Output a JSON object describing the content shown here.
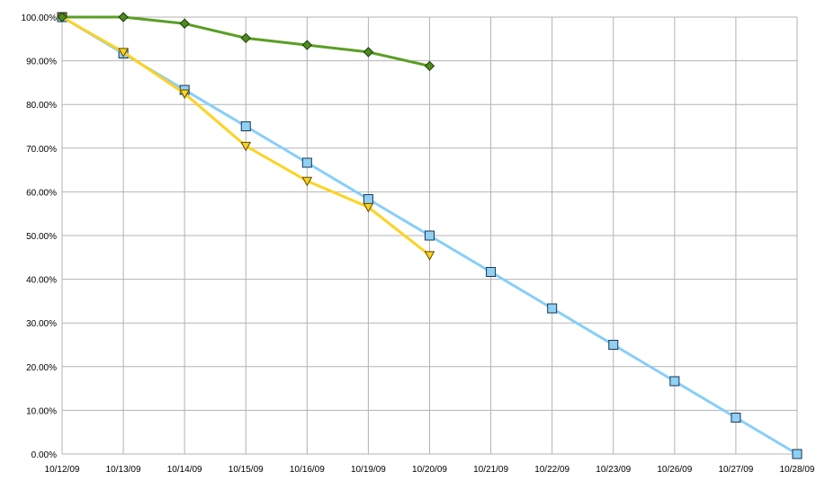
{
  "chart_data": {
    "type": "line",
    "categories": [
      "10/12/09",
      "10/13/09",
      "10/14/09",
      "10/15/09",
      "10/16/09",
      "10/19/09",
      "10/20/09",
      "10/21/09",
      "10/22/09",
      "10/23/09",
      "10/26/09",
      "10/27/09",
      "10/28/09"
    ],
    "yticks": [
      "0.00%",
      "10.00%",
      "20.00%",
      "30.00%",
      "40.00%",
      "50.00%",
      "60.00%",
      "70.00%",
      "80.00%",
      "90.00%",
      "100.00%"
    ],
    "ylim": [
      0,
      100
    ],
    "grid": true,
    "series": [
      {
        "color": "#87cefa",
        "marker": "square",
        "marker_fill": "#8fd0f5",
        "values": [
          100,
          91.67,
          83.33,
          75,
          66.67,
          58.33,
          50,
          41.67,
          33.33,
          25,
          16.67,
          8.33,
          0
        ]
      },
      {
        "color": "#ffd21f",
        "marker": "triangle-down",
        "marker_fill": "#ffd21f",
        "values": [
          100,
          92,
          82.5,
          70.5,
          62.5,
          56.5,
          45.5,
          null,
          null,
          null,
          null,
          null,
          null
        ]
      },
      {
        "color": "#5a9e24",
        "marker": "diamond",
        "marker_fill": "#4f8a1f",
        "values": [
          100,
          100,
          98.5,
          95.2,
          93.6,
          92,
          88.8,
          null,
          null,
          null,
          null,
          null,
          null
        ]
      }
    ]
  }
}
